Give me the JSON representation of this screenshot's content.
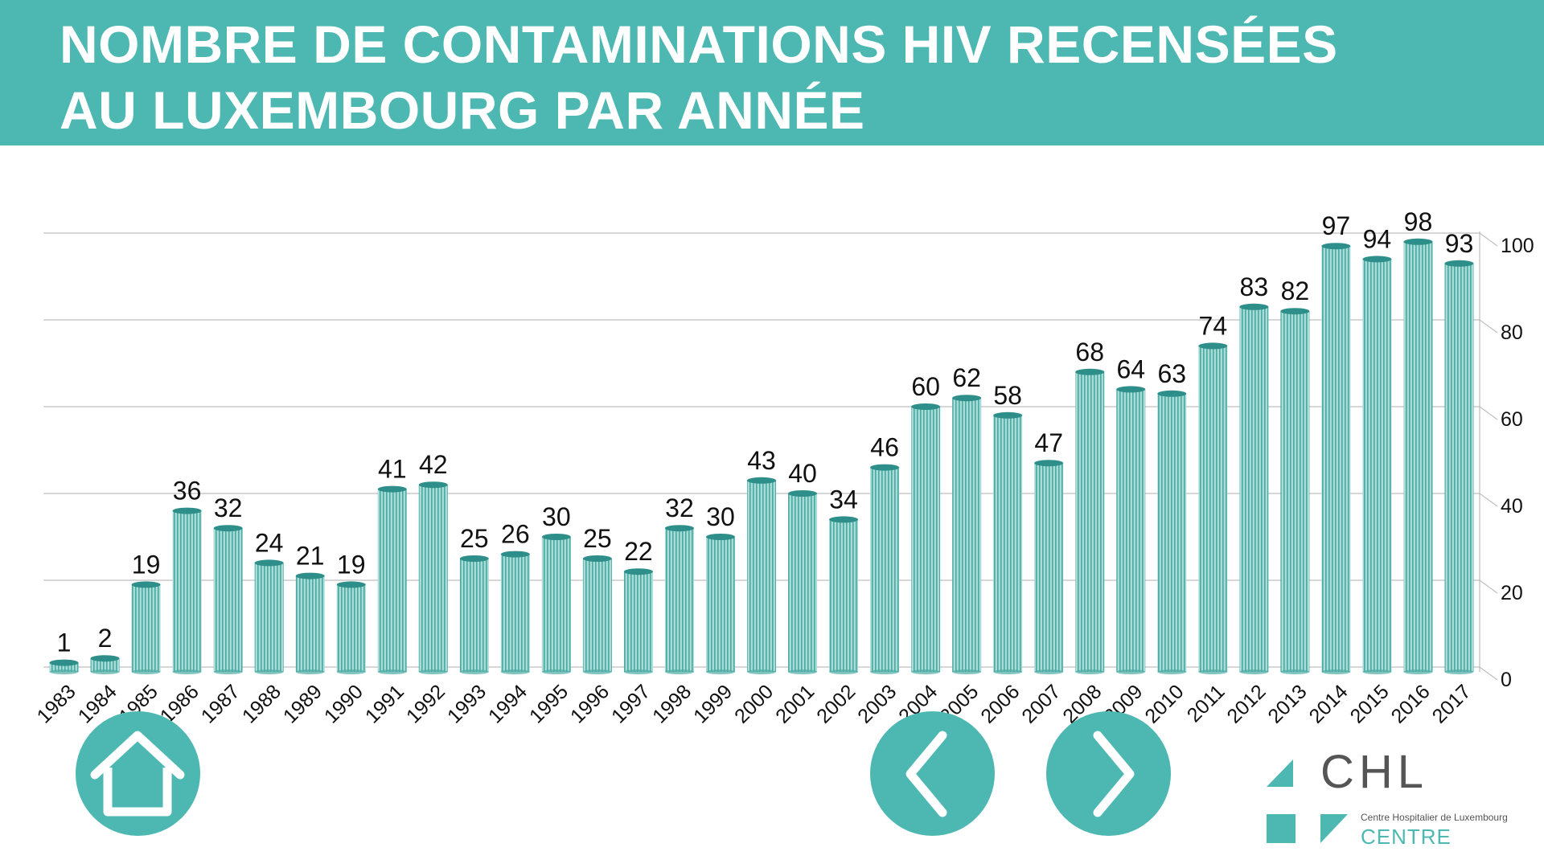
{
  "header": {
    "title_line1": "NOMBRE DE CONTAMINATIONS HIV RECENSÉES",
    "title_line2": "AU LUXEMBOURG PAR ANNÉE"
  },
  "colors": {
    "brand": "#4db8b2",
    "bar_fill": "#a8dcd7",
    "bar_stripe": "#4aa9a3",
    "bar_cap": "#2e8e89",
    "grid": "#bfbfbf",
    "text": "#111111"
  },
  "chart_data": {
    "type": "bar",
    "categories": [
      "1983",
      "1984",
      "1985",
      "1986",
      "1987",
      "1988",
      "1989",
      "1990",
      "1991",
      "1992",
      "1993",
      "1994",
      "1995",
      "1996",
      "1997",
      "1998",
      "1999",
      "2000",
      "2001",
      "2002",
      "2003",
      "2004",
      "2005",
      "2006",
      "2007",
      "2008",
      "2009",
      "2010",
      "2011",
      "2012",
      "2013",
      "2014",
      "2015",
      "2016",
      "2017"
    ],
    "values": [
      1,
      2,
      19,
      36,
      32,
      24,
      21,
      19,
      41,
      42,
      25,
      26,
      30,
      25,
      22,
      32,
      30,
      43,
      40,
      34,
      46,
      60,
      62,
      58,
      47,
      68,
      64,
      63,
      74,
      83,
      82,
      97,
      94,
      98,
      93
    ],
    "value_labels": [
      "1",
      "2",
      "19",
      "36",
      "32",
      "24",
      "21",
      "19",
      "41",
      "42",
      "25",
      "26",
      "30",
      "25",
      "22",
      "32",
      "30",
      "43",
      "40",
      "34",
      "46",
      "60",
      "62",
      "58",
      "47",
      "68",
      "64",
      "63",
      "74",
      "83",
      "82",
      "97",
      "94",
      "98",
      "93"
    ],
    "y_ticks": [
      "0",
      "20",
      "40",
      "60",
      "80",
      "100"
    ],
    "ylim": [
      0,
      100
    ],
    "y_axis_position": "right",
    "grid": true,
    "data_labels": true,
    "legend": false
  },
  "navigation": {
    "home_icon": "home-icon",
    "prev_icon": "chevron-left-icon",
    "next_icon": "chevron-right-icon"
  },
  "logo": {
    "name": "CHL",
    "subtitle": "Centre Hospitalier de Luxembourg",
    "unit": "CENTRE"
  }
}
